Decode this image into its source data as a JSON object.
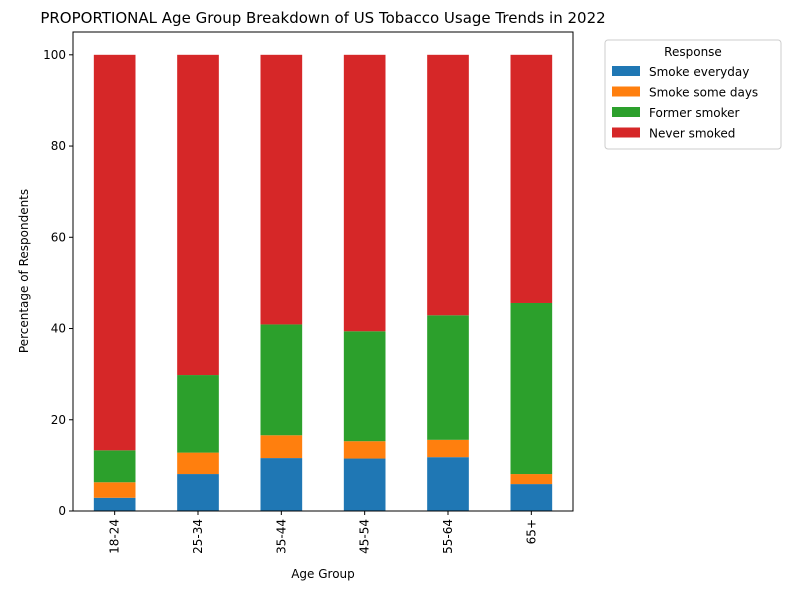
{
  "chart_data": {
    "type": "bar",
    "stacked": true,
    "title": "PROPORTIONAL Age Group Breakdown of US Tobacco Usage Trends in 2022",
    "xlabel": "Age Group",
    "ylabel": "Percentage of Respondents",
    "ylim": [
      0,
      105
    ],
    "yticks": [
      0,
      20,
      40,
      60,
      80,
      100
    ],
    "categories": [
      "18-24",
      "25-34",
      "35-44",
      "45-54",
      "55-64",
      "65+"
    ],
    "series": [
      {
        "name": "Smoke everyday",
        "color": "#1f77b4",
        "values": [
          2.9,
          8.1,
          11.6,
          11.5,
          11.8,
          5.9
        ]
      },
      {
        "name": "Smoke some days",
        "color": "#ff7f0e",
        "values": [
          3.4,
          4.7,
          5.0,
          3.8,
          3.8,
          2.2
        ]
      },
      {
        "name": "Former smoker",
        "color": "#2ca02c",
        "values": [
          7.0,
          17.0,
          24.3,
          24.1,
          27.3,
          37.5
        ]
      },
      {
        "name": "Never smoked",
        "color": "#d62728",
        "values": [
          86.7,
          70.2,
          59.1,
          60.6,
          57.1,
          54.4
        ]
      }
    ],
    "legend": {
      "title": "Response",
      "placement": "outside-right"
    },
    "grid": false
  }
}
